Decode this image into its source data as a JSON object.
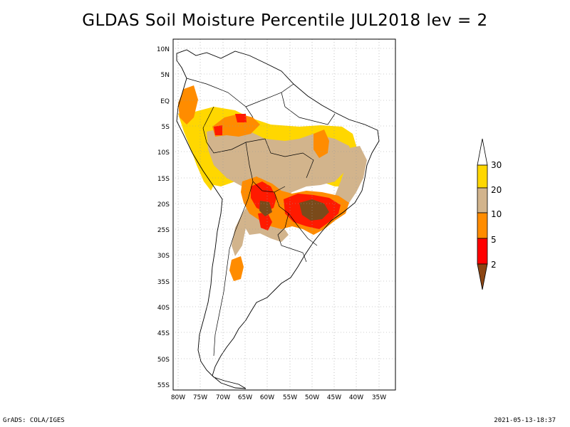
{
  "title": "GLDAS Soil Moisture Percentile JUL2018 lev = 2",
  "footer": {
    "credit": "GrADS: COLA/IGES",
    "timestamp": "2021-05-13-18:37"
  },
  "map": {
    "lat_labels": [
      "10N",
      "5N",
      "EQ",
      "5S",
      "10S",
      "15S",
      "20S",
      "25S",
      "30S",
      "35S",
      "40S",
      "45S",
      "50S",
      "55S"
    ],
    "lon_labels": [
      "80W",
      "75W",
      "70W",
      "65W",
      "60W",
      "55W",
      "50W",
      "45W",
      "40W",
      "35W"
    ]
  },
  "colorbar": {
    "labels": [
      "30",
      "20",
      "10",
      "5",
      "2"
    ],
    "colors": [
      "#ffd700",
      "#d2b48c",
      "#ff8c00",
      "#ff0000",
      "#8b4513"
    ],
    "top_color": "#ffffff"
  },
  "colors": {
    "yellow": "#ffd700",
    "tan": "#d2b48c",
    "orange": "#ff8c00",
    "red": "#ff1a00",
    "brown": "#7a4a1a"
  }
}
